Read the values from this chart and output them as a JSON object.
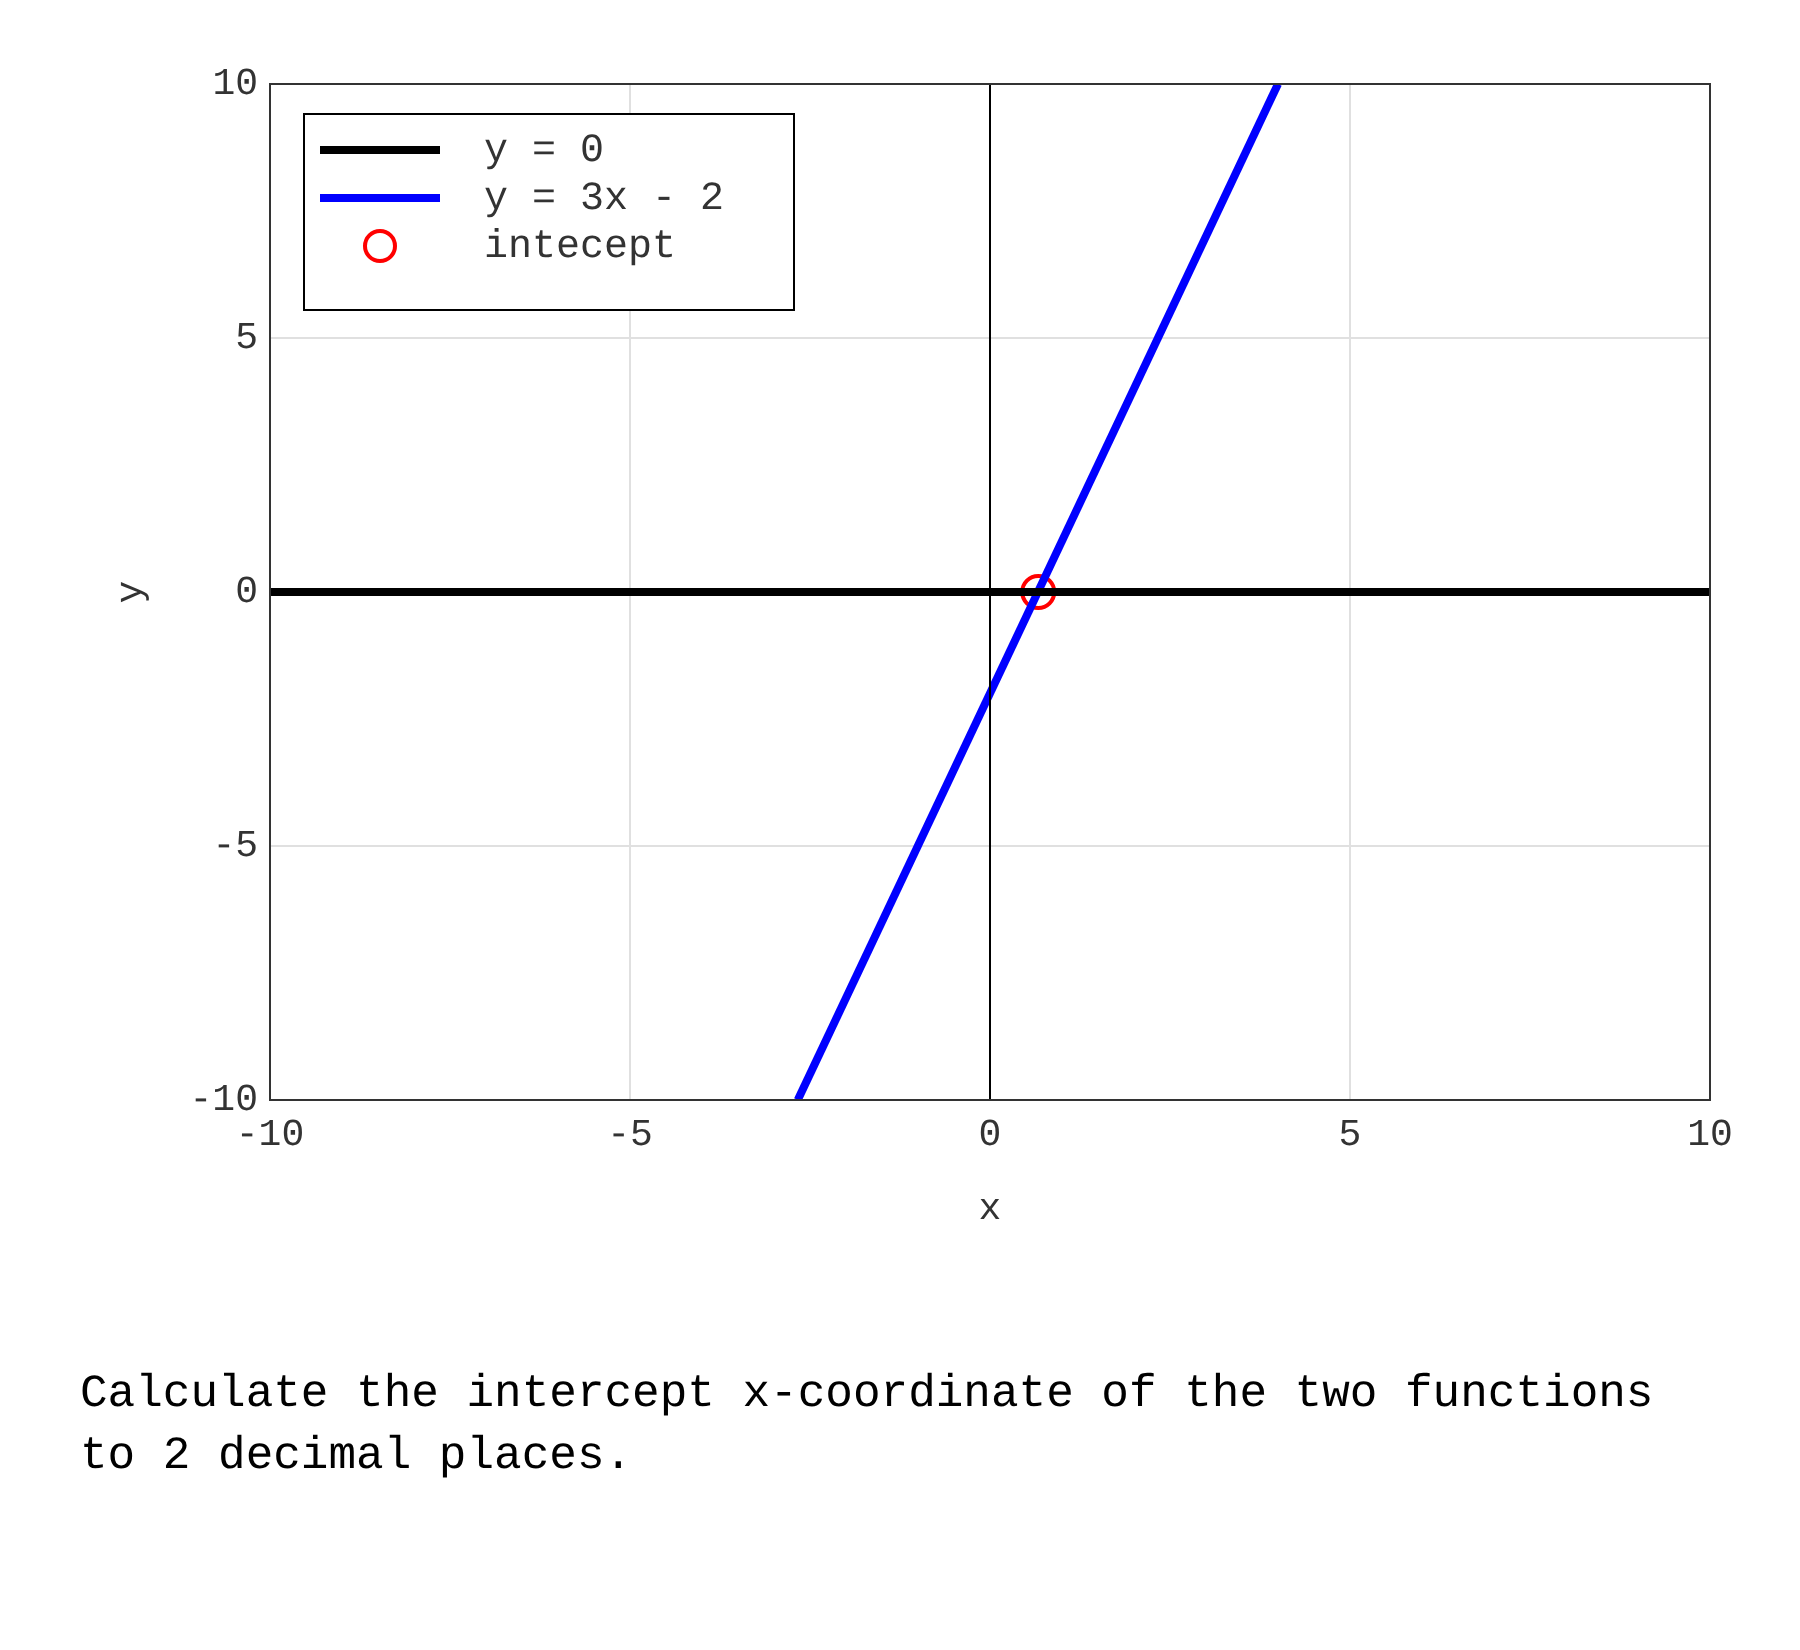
{
  "chart_data": {
    "type": "line",
    "xlabel": "x",
    "ylabel": "y",
    "xlim": [
      -10,
      10
    ],
    "ylim": [
      -10,
      10
    ],
    "xticks": [
      -10,
      -5,
      0,
      5,
      10
    ],
    "yticks": [
      -10,
      -5,
      0,
      5,
      10
    ],
    "grid": true,
    "legend": "top left",
    "marker": "none",
    "line_style": "solid",
    "ref_lines": [
      {
        "axis": "x",
        "value": 0,
        "color": "#000000"
      }
    ],
    "series": [
      {
        "name": "y = 0",
        "color": "#000000",
        "x": [
          -10,
          10
        ],
        "values": [
          0,
          0
        ]
      },
      {
        "name": "y = 3x - 2",
        "color": "#0000ff",
        "x": [
          -2.67,
          4
        ],
        "values": [
          -10,
          10
        ]
      },
      {
        "name": "intecept",
        "type": "scatter",
        "marker": "circle",
        "color": "#ff0000",
        "x": [
          0.67
        ],
        "values": [
          0
        ]
      }
    ],
    "annotations": [
      "Calculate the intercept x-coordinate of the two functions to 2 decimal places."
    ]
  }
}
